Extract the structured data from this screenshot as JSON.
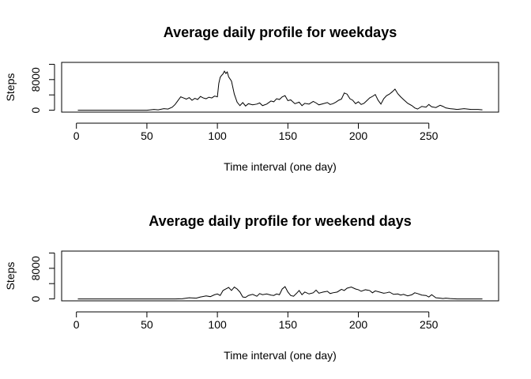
{
  "chart_data": [
    {
      "type": "line",
      "title": "Average daily profile for weekdays",
      "xlabel": "Time interval (one day)",
      "ylabel": "Steps",
      "xlim": [
        1,
        288
      ],
      "ylim": [
        0,
        12000
      ],
      "xticks": [
        0,
        50,
        100,
        150,
        200,
        250
      ],
      "yticks": [
        0,
        4000,
        8000,
        12000
      ],
      "ytick_labels": [
        "0",
        "",
        "8000",
        ""
      ],
      "grid": false,
      "series": [
        {
          "x": [
            1,
            10,
            20,
            30,
            40,
            50,
            55,
            58,
            62,
            65,
            68,
            70,
            72,
            74,
            76,
            78,
            80,
            82,
            84,
            86,
            88,
            90,
            92,
            94,
            96,
            98,
            100,
            101,
            102,
            103,
            104,
            105,
            106,
            107,
            108,
            110,
            112,
            114,
            116,
            118,
            120,
            122,
            125,
            128,
            130,
            132,
            135,
            138,
            140,
            142,
            144,
            146,
            148,
            150,
            152,
            155,
            158,
            160,
            162,
            165,
            168,
            170,
            172,
            175,
            178,
            180,
            182,
            184,
            186,
            188,
            190,
            192,
            194,
            196,
            198,
            200,
            202,
            204,
            206,
            208,
            210,
            212,
            214,
            216,
            218,
            220,
            222,
            224,
            226,
            228,
            230,
            232,
            235,
            238,
            240,
            242,
            245,
            248,
            250,
            252,
            255,
            258,
            260,
            262,
            265,
            268,
            270,
            275,
            280,
            285,
            288
          ],
          "y": [
            0,
            0,
            0,
            0,
            0,
            0,
            200,
            100,
            400,
            300,
            800,
            1500,
            2500,
            3500,
            3200,
            2900,
            3300,
            2600,
            3100,
            2800,
            3600,
            3200,
            3000,
            3400,
            3200,
            3700,
            3500,
            7000,
            8600,
            9100,
            9500,
            10200,
            9600,
            10000,
            8700,
            7600,
            4200,
            2100,
            1200,
            2000,
            1100,
            1700,
            1400,
            1600,
            1900,
            1200,
            1600,
            2400,
            2200,
            3000,
            2800,
            3500,
            3800,
            2500,
            2700,
            1700,
            2100,
            1200,
            1800,
            1600,
            2300,
            1900,
            1400,
            1700,
            2000,
            1500,
            1700,
            2100,
            2600,
            2900,
            4500,
            4200,
            3000,
            2600,
            1700,
            2200,
            1500,
            1800,
            2500,
            3200,
            3600,
            4100,
            2600,
            1600,
            3000,
            3800,
            4200,
            4800,
            5500,
            4300,
            3500,
            2800,
            1800,
            1200,
            600,
            300,
            1000,
            800,
            1500,
            900,
            700,
            1300,
            1000,
            600,
            400,
            300,
            200,
            400,
            200,
            200,
            100
          ]
        }
      ]
    },
    {
      "type": "line",
      "title": "Average daily profile for weekend days",
      "xlabel": "Time interval (one day)",
      "ylabel": "Steps",
      "xlim": [
        1,
        288
      ],
      "ylim": [
        0,
        12000
      ],
      "xticks": [
        0,
        50,
        100,
        150,
        200,
        250
      ],
      "yticks": [
        0,
        4000,
        8000,
        12000
      ],
      "ytick_labels": [
        "0",
        "",
        "8000",
        ""
      ],
      "grid": false,
      "series": [
        {
          "x": [
            1,
            10,
            20,
            30,
            40,
            50,
            60,
            70,
            75,
            80,
            85,
            88,
            92,
            95,
            98,
            100,
            102,
            104,
            106,
            108,
            110,
            112,
            114,
            116,
            118,
            120,
            122,
            125,
            128,
            130,
            132,
            135,
            138,
            140,
            142,
            144,
            146,
            148,
            150,
            152,
            154,
            156,
            158,
            160,
            162,
            165,
            168,
            170,
            172,
            175,
            178,
            180,
            182,
            185,
            188,
            190,
            192,
            195,
            198,
            200,
            202,
            205,
            208,
            210,
            212,
            215,
            218,
            220,
            222,
            225,
            228,
            230,
            232,
            235,
            238,
            240,
            242,
            245,
            248,
            250,
            252,
            255,
            258,
            260,
            262,
            265,
            270,
            275,
            280,
            285,
            288
          ],
          "y": [
            0,
            0,
            0,
            0,
            0,
            0,
            0,
            0,
            50,
            300,
            200,
            500,
            800,
            600,
            1100,
            1300,
            900,
            2200,
            2600,
            3000,
            2200,
            3100,
            2600,
            1800,
            500,
            400,
            900,
            1200,
            700,
            1400,
            1100,
            1300,
            1000,
            900,
            1300,
            1100,
            2600,
            3200,
            1800,
            900,
            700,
            1400,
            2200,
            1100,
            1800,
            1300,
            1600,
            2300,
            1500,
            1800,
            2000,
            1400,
            1600,
            1800,
            2500,
            2200,
            2800,
            3100,
            2600,
            2400,
            2000,
            2400,
            2200,
            1600,
            2100,
            1800,
            1500,
            1600,
            1800,
            1200,
            1300,
            1000,
            1200,
            800,
            1100,
            1600,
            1400,
            1000,
            900,
            500,
            1100,
            300,
            200,
            100,
            200,
            100,
            0,
            0,
            0,
            0,
            0
          ]
        }
      ]
    }
  ]
}
